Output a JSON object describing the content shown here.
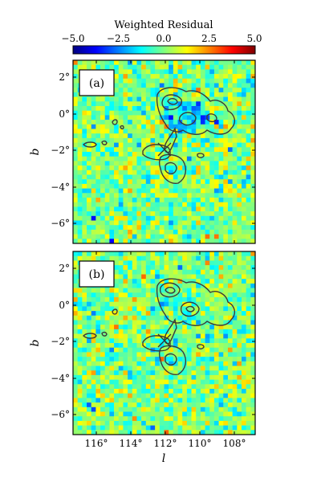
{
  "chart_data": {
    "type": "heatmap",
    "colorbar": {
      "title": "Weighted Residual",
      "range": [
        -5.0,
        5.0
      ],
      "tick_labels": [
        "−5.0",
        "−2.5",
        "0.0",
        "2.5",
        "5.0"
      ],
      "colormap": "jet"
    },
    "shared_axes": {
      "xlabel": "l",
      "ylabel": "b",
      "x_range_deg": [
        117.3,
        106.7
      ],
      "y_range_deg": [
        -7.0,
        3.0
      ],
      "x_tick_labels": [
        "116°",
        "114°",
        "112°",
        "110°",
        "108°"
      ],
      "y_tick_labels": [
        "2°",
        "0°",
        "−2°",
        "−4°",
        "−6°"
      ],
      "grid": false
    },
    "panels": [
      {
        "label": "(a)"
      },
      {
        "label": "(b)"
      }
    ]
  }
}
